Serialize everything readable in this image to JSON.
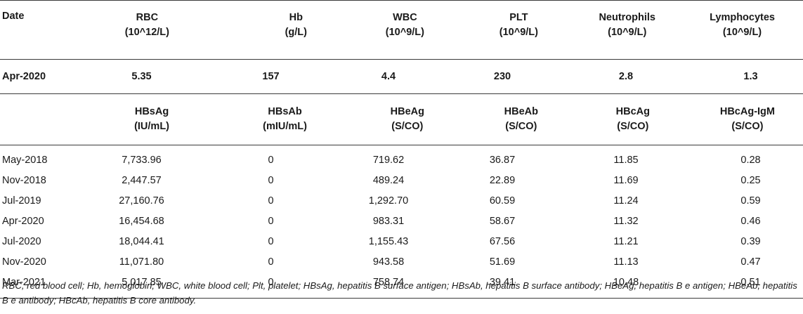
{
  "header1": {
    "date": "Date",
    "cols": [
      {
        "line1": "RBC",
        "line2": "(10^12/L)"
      },
      {
        "line1": "Hb",
        "line2": "(g/L)"
      },
      {
        "line1": "WBC",
        "line2": "(10^9/L)"
      },
      {
        "line1": "PLT",
        "line2": "(10^9/L)"
      },
      {
        "line1": "Neutrophils",
        "line2": "(10^9/L)"
      },
      {
        "line1": "Lymphocytes",
        "line2": "(10^9/L)"
      }
    ]
  },
  "blood_row": {
    "date": "Apr-2020",
    "values": [
      "5.35",
      "157",
      "4.4",
      "230",
      "2.8",
      "1.3"
    ]
  },
  "header2": {
    "cols": [
      {
        "line1": "HBsAg",
        "line2": "(IU/mL)"
      },
      {
        "line1": "HBsAb",
        "line2": "(mIU/mL)"
      },
      {
        "line1": "HBeAg",
        "line2": "(S/CO)"
      },
      {
        "line1": "HBeAb",
        "line2": "(S/CO)"
      },
      {
        "line1": "HBcAg",
        "line2": "(S/CO)"
      },
      {
        "line1": "HBcAg-IgM",
        "line2": "(S/CO)"
      }
    ]
  },
  "rows": [
    {
      "date": "May-2018",
      "values": [
        "7,733.96",
        "0",
        "719.62",
        "36.87",
        "11.85",
        "0.28"
      ]
    },
    {
      "date": "Nov-2018",
      "values": [
        "2,447.57",
        "0",
        "489.24",
        "22.89",
        "11.69",
        "0.25"
      ]
    },
    {
      "date": "Jul-2019",
      "values": [
        "27,160.76",
        "0",
        "1,292.70",
        "60.59",
        "11.24",
        "0.59"
      ]
    },
    {
      "date": "Apr-2020",
      "values": [
        "16,454.68",
        "0",
        "983.31",
        "58.67",
        "11.32",
        "0.46"
      ]
    },
    {
      "date": "Jul-2020",
      "values": [
        "18,044.41",
        "0",
        "1,155.43",
        "67.56",
        "11.21",
        "0.39"
      ]
    },
    {
      "date": "Nov-2020",
      "values": [
        "11,071.80",
        "0",
        "943.58",
        "51.69",
        "11.13",
        "0.47"
      ]
    },
    {
      "date": "Mar-2021",
      "values": [
        "5,017.85",
        "0",
        "758.74",
        "39.41",
        "10.48",
        "0.51"
      ]
    }
  ],
  "footnote": "RBC, red blood cell; Hb, hemoglobin; WBC, white blood cell; Plt, platelet; HBsAg, hepatitis B surface antigen; HBsAb, hepatitis B surface antibody; HBeAg, hepatitis B e antigen; HBeAb, hepatitis B e antibody; HBcAb, hepatitis B core antibody."
}
